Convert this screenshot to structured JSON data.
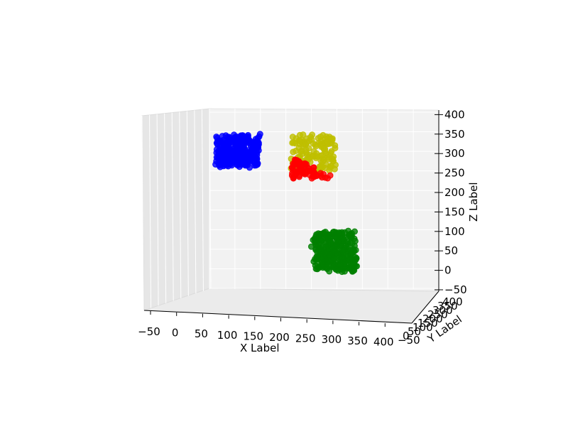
{
  "chart_data": {
    "type": "scatter",
    "projection": "3d",
    "title": "",
    "xlabel": "X Label",
    "ylabel": "Y Label",
    "zlabel": "Z Label",
    "xlim": [
      -50,
      400
    ],
    "ylim": [
      -50,
      400
    ],
    "zlim": [
      -50,
      400
    ],
    "xticks": [
      "−50",
      "0",
      "50",
      "100",
      "150",
      "200",
      "250",
      "300",
      "350",
      "400"
    ],
    "zticks": [
      "−50",
      "0",
      "50",
      "100",
      "150",
      "200",
      "250",
      "300",
      "350",
      "400"
    ],
    "yticks_visible": [
      "−50",
      "0",
      "50",
      "100",
      "150",
      "200",
      "250",
      "300",
      "350",
      "400"
    ],
    "grid": true,
    "legend": "none",
    "series": [
      {
        "color": "#0000ff",
        "x": [
          90,
          190
        ],
        "z": [
          270,
          350
        ],
        "points": 300
      },
      {
        "color": "#bfbf00",
        "x": [
          270,
          370
        ],
        "z": [
          260,
          350
        ],
        "points": 150
      },
      {
        "color": "#ff0000",
        "x": [
          270,
          370
        ],
        "z": [
          240,
          300
        ],
        "points": 150
      },
      {
        "color": "#008000",
        "x": [
          320,
          420
        ],
        "z": [
          0,
          100
        ],
        "points": 300
      }
    ]
  }
}
